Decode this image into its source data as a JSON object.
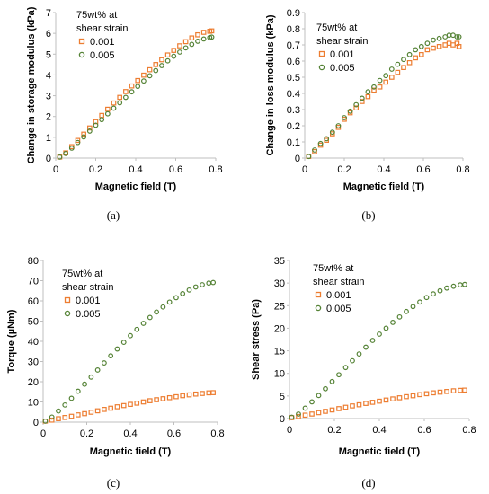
{
  "colors": {
    "series_0_001": "#ED7D31",
    "series_0_005": "#548235"
  },
  "chart_data": [
    {
      "type": "scatter",
      "caption": "(a)",
      "xlabel": "Magnetic field (T)",
      "ylabel": "Change in storage modulus (kPa)",
      "xlim": [
        0,
        0.8
      ],
      "ylim": [
        0,
        7
      ],
      "xticks": [
        "0",
        "0.2",
        "0.4",
        "0.6",
        "0.8"
      ],
      "yticks": [
        "0",
        "1",
        "2",
        "3",
        "4",
        "5",
        "6",
        "7"
      ],
      "legend_title": [
        "75wt% at",
        "shear strain"
      ],
      "legend_position": "top-left",
      "series": [
        {
          "name": "0.001",
          "marker": "square",
          "x": [
            0.02,
            0.05,
            0.08,
            0.11,
            0.14,
            0.17,
            0.2,
            0.23,
            0.26,
            0.29,
            0.32,
            0.35,
            0.38,
            0.41,
            0.44,
            0.47,
            0.5,
            0.53,
            0.56,
            0.59,
            0.62,
            0.65,
            0.68,
            0.71,
            0.74,
            0.77,
            0.78
          ],
          "y": [
            0.05,
            0.25,
            0.55,
            0.85,
            1.15,
            1.45,
            1.75,
            2.05,
            2.35,
            2.65,
            2.92,
            3.2,
            3.47,
            3.73,
            3.99,
            4.25,
            4.5,
            4.73,
            4.96,
            5.18,
            5.4,
            5.6,
            5.78,
            5.93,
            6.05,
            6.1,
            6.12
          ]
        },
        {
          "name": "0.005",
          "marker": "circle",
          "x": [
            0.02,
            0.05,
            0.08,
            0.11,
            0.14,
            0.17,
            0.2,
            0.23,
            0.26,
            0.29,
            0.32,
            0.35,
            0.38,
            0.41,
            0.44,
            0.47,
            0.5,
            0.53,
            0.56,
            0.59,
            0.62,
            0.65,
            0.68,
            0.71,
            0.74,
            0.77,
            0.78
          ],
          "y": [
            0.05,
            0.22,
            0.48,
            0.75,
            1.02,
            1.3,
            1.58,
            1.85,
            2.13,
            2.4,
            2.66,
            2.92,
            3.19,
            3.45,
            3.71,
            3.96,
            4.21,
            4.45,
            4.68,
            4.9,
            5.1,
            5.3,
            5.47,
            5.62,
            5.73,
            5.8,
            5.82
          ]
        }
      ]
    },
    {
      "type": "scatter",
      "caption": "(b)",
      "xlabel": "Magnetic field (T)",
      "ylabel": "Change in loss modulus (kPa)",
      "xlim": [
        0,
        0.8
      ],
      "ylim": [
        0,
        0.9
      ],
      "xticks": [
        "0",
        "0.2",
        "0.4",
        "0.6",
        "0.8"
      ],
      "yticks": [
        "0",
        "0.1",
        "0.2",
        "0.3",
        "0.4",
        "0.5",
        "0.6",
        "0.7",
        "0.8",
        "0.9"
      ],
      "legend_title": [
        "75wt% at",
        "shear strain"
      ],
      "legend_position": "top-left",
      "series": [
        {
          "name": "0.001",
          "marker": "square",
          "x": [
            0.02,
            0.05,
            0.08,
            0.11,
            0.14,
            0.17,
            0.2,
            0.23,
            0.26,
            0.29,
            0.32,
            0.35,
            0.38,
            0.41,
            0.44,
            0.47,
            0.5,
            0.53,
            0.56,
            0.59,
            0.62,
            0.65,
            0.68,
            0.71,
            0.73,
            0.75,
            0.77,
            0.78
          ],
          "y": [
            0.01,
            0.04,
            0.08,
            0.11,
            0.15,
            0.19,
            0.24,
            0.28,
            0.31,
            0.35,
            0.38,
            0.42,
            0.44,
            0.47,
            0.5,
            0.53,
            0.56,
            0.59,
            0.62,
            0.64,
            0.67,
            0.68,
            0.69,
            0.7,
            0.71,
            0.7,
            0.71,
            0.69
          ]
        },
        {
          "name": "0.005",
          "marker": "circle",
          "x": [
            0.02,
            0.05,
            0.08,
            0.11,
            0.14,
            0.17,
            0.2,
            0.23,
            0.26,
            0.29,
            0.32,
            0.35,
            0.38,
            0.41,
            0.44,
            0.47,
            0.5,
            0.53,
            0.56,
            0.59,
            0.62,
            0.65,
            0.68,
            0.71,
            0.73,
            0.75,
            0.77,
            0.78
          ],
          "y": [
            0.01,
            0.05,
            0.09,
            0.12,
            0.16,
            0.2,
            0.25,
            0.29,
            0.33,
            0.37,
            0.41,
            0.44,
            0.48,
            0.51,
            0.55,
            0.58,
            0.61,
            0.64,
            0.67,
            0.69,
            0.71,
            0.73,
            0.74,
            0.75,
            0.76,
            0.76,
            0.75,
            0.75
          ]
        }
      ]
    },
    {
      "type": "scatter",
      "caption": "(c)",
      "xlabel": "Magnetic field (T)",
      "ylabel": "Torque (µNm)",
      "xlim": [
        0,
        0.8
      ],
      "ylim": [
        0,
        80
      ],
      "xticks": [
        "0",
        "0.2",
        "0.4",
        "0.6",
        "0.8"
      ],
      "yticks": [
        "0",
        "10",
        "20",
        "30",
        "40",
        "50",
        "60",
        "70",
        "80"
      ],
      "legend_title": [
        "75wt% at",
        "shear strain"
      ],
      "legend_position": "top-left",
      "series": [
        {
          "name": "0.001",
          "marker": "square",
          "x": [
            0.01,
            0.04,
            0.07,
            0.1,
            0.13,
            0.16,
            0.19,
            0.22,
            0.25,
            0.28,
            0.31,
            0.34,
            0.37,
            0.4,
            0.43,
            0.46,
            0.49,
            0.52,
            0.55,
            0.58,
            0.61,
            0.64,
            0.67,
            0.7,
            0.73,
            0.76,
            0.78
          ],
          "y": [
            0.5,
            1.0,
            1.7,
            2.3,
            2.9,
            3.6,
            4.2,
            4.9,
            5.6,
            6.3,
            6.9,
            7.6,
            8.2,
            8.8,
            9.4,
            10.0,
            10.6,
            11.1,
            11.6,
            12.1,
            12.6,
            13.1,
            13.5,
            13.9,
            14.2,
            14.5,
            14.6
          ]
        },
        {
          "name": "0.005",
          "marker": "circle",
          "x": [
            0.01,
            0.04,
            0.07,
            0.1,
            0.13,
            0.16,
            0.19,
            0.22,
            0.25,
            0.28,
            0.31,
            0.34,
            0.37,
            0.4,
            0.43,
            0.46,
            0.49,
            0.52,
            0.55,
            0.58,
            0.61,
            0.64,
            0.67,
            0.7,
            0.73,
            0.76,
            0.78
          ],
          "y": [
            0.5,
            2.5,
            5.5,
            8.5,
            11.8,
            15.3,
            18.8,
            22.3,
            25.8,
            29.3,
            32.8,
            36.2,
            39.5,
            42.8,
            45.9,
            48.9,
            51.8,
            54.5,
            57.0,
            59.4,
            61.6,
            63.6,
            65.4,
            66.9,
            68.0,
            68.8,
            69.1
          ]
        }
      ]
    },
    {
      "type": "scatter",
      "caption": "(d)",
      "xlabel": "Magnetic field (T)",
      "ylabel": "Shear stress (Pa)",
      "xlim": [
        0,
        0.8
      ],
      "ylim": [
        0,
        35
      ],
      "xticks": [
        "0",
        "0.2",
        "0.4",
        "0.6",
        "0.8"
      ],
      "yticks": [
        "0",
        "5",
        "10",
        "15",
        "20",
        "25",
        "30",
        "35"
      ],
      "legend_title": [
        "75wt% at",
        "shear strain"
      ],
      "legend_position": "top-left",
      "series": [
        {
          "name": "0.001",
          "marker": "square",
          "x": [
            0.01,
            0.04,
            0.07,
            0.1,
            0.13,
            0.16,
            0.19,
            0.22,
            0.25,
            0.28,
            0.31,
            0.34,
            0.37,
            0.4,
            0.43,
            0.46,
            0.49,
            0.52,
            0.55,
            0.58,
            0.61,
            0.64,
            0.67,
            0.7,
            0.73,
            0.76,
            0.78
          ],
          "y": [
            0.2,
            0.45,
            0.75,
            1.0,
            1.3,
            1.6,
            1.9,
            2.2,
            2.5,
            2.8,
            3.05,
            3.35,
            3.6,
            3.85,
            4.1,
            4.35,
            4.6,
            4.85,
            5.05,
            5.3,
            5.5,
            5.7,
            5.85,
            6.0,
            6.15,
            6.25,
            6.3
          ]
        },
        {
          "name": "0.005",
          "marker": "circle",
          "x": [
            0.01,
            0.04,
            0.07,
            0.1,
            0.13,
            0.16,
            0.19,
            0.22,
            0.25,
            0.28,
            0.31,
            0.34,
            0.37,
            0.4,
            0.43,
            0.46,
            0.49,
            0.52,
            0.55,
            0.58,
            0.61,
            0.64,
            0.67,
            0.7,
            0.73,
            0.76,
            0.78
          ],
          "y": [
            0.3,
            1.0,
            2.3,
            3.7,
            5.1,
            6.6,
            8.2,
            9.7,
            11.3,
            12.8,
            14.3,
            15.8,
            17.3,
            18.7,
            20.0,
            21.3,
            22.5,
            23.7,
            24.8,
            25.8,
            26.8,
            27.6,
            28.3,
            28.9,
            29.3,
            29.6,
            29.7
          ]
        }
      ]
    }
  ]
}
